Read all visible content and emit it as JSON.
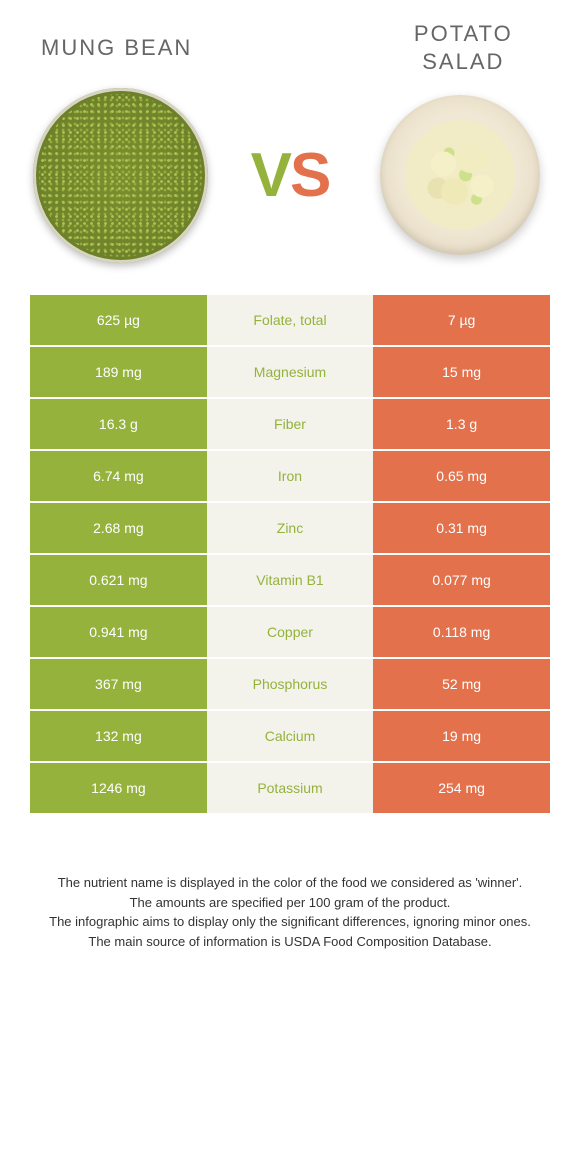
{
  "colors": {
    "left": "#94b23c",
    "right": "#e2714c",
    "mid_bg": "#f3f3ec",
    "title": "#666666",
    "cell_text": "#ffffff"
  },
  "foods": {
    "left": {
      "name": "MUNG BEAN"
    },
    "right": {
      "name": "POTATO SALAD"
    }
  },
  "vs_label": {
    "v": "V",
    "s": "S"
  },
  "rows": [
    {
      "nutrient": "Folate, total",
      "left": "625 µg",
      "right": "7 µg",
      "winner": "left"
    },
    {
      "nutrient": "Magnesium",
      "left": "189 mg",
      "right": "15 mg",
      "winner": "left"
    },
    {
      "nutrient": "Fiber",
      "left": "16.3 g",
      "right": "1.3 g",
      "winner": "left"
    },
    {
      "nutrient": "Iron",
      "left": "6.74 mg",
      "right": "0.65 mg",
      "winner": "left"
    },
    {
      "nutrient": "Zinc",
      "left": "2.68 mg",
      "right": "0.31 mg",
      "winner": "left"
    },
    {
      "nutrient": "Vitamin B1",
      "left": "0.621 mg",
      "right": "0.077 mg",
      "winner": "left"
    },
    {
      "nutrient": "Copper",
      "left": "0.941 mg",
      "right": "0.118 mg",
      "winner": "left"
    },
    {
      "nutrient": "Phosphorus",
      "left": "367 mg",
      "right": "52 mg",
      "winner": "left"
    },
    {
      "nutrient": "Calcium",
      "left": "132 mg",
      "right": "19 mg",
      "winner": "left"
    },
    {
      "nutrient": "Potassium",
      "left": "1246 mg",
      "right": "254 mg",
      "winner": "left"
    }
  ],
  "footer_lines": [
    "The nutrient name is displayed in the color of the food we considered as 'winner'.",
    "The amounts are specified per 100 gram of the product.",
    "The infographic aims to display only the significant differences, ignoring minor ones.",
    "The main source of information is USDA Food Composition Database."
  ]
}
